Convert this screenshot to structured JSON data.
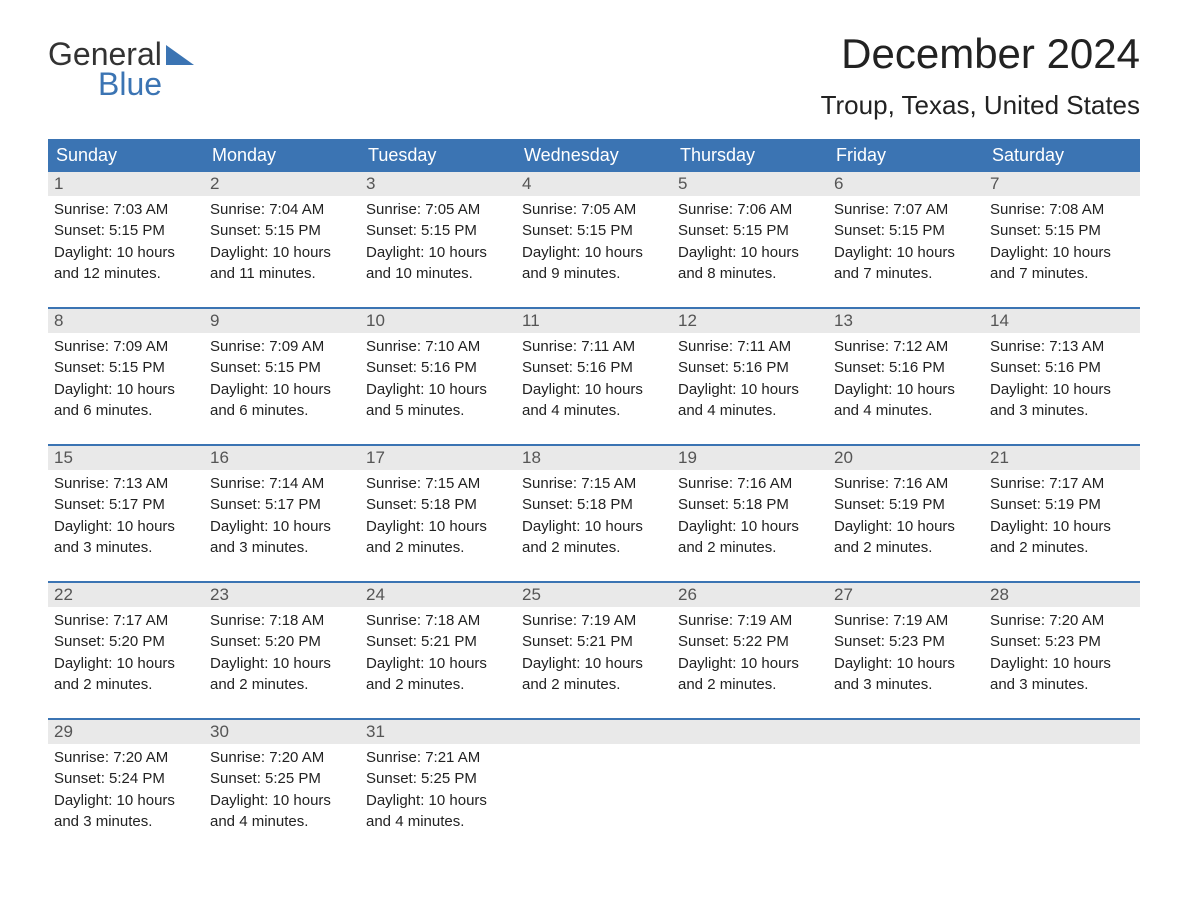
{
  "brand": {
    "word1": "General",
    "word2": "Blue",
    "accent_color": "#3b74b3"
  },
  "title": "December 2024",
  "subtitle": "Troup, Texas, United States",
  "colors": {
    "header_bg": "#3b74b3",
    "header_text": "#ffffff",
    "daynum_bg": "#e9e9e9",
    "daynum_text": "#555555",
    "body_text": "#222222",
    "week_border": "#3b74b3",
    "page_bg": "#ffffff"
  },
  "fonts": {
    "title_size_pt": 32,
    "subtitle_size_pt": 20,
    "header_size_pt": 14,
    "body_size_pt": 11
  },
  "weekdays": [
    "Sunday",
    "Monday",
    "Tuesday",
    "Wednesday",
    "Thursday",
    "Friday",
    "Saturday"
  ],
  "weeks": [
    [
      {
        "n": "1",
        "sunrise": "Sunrise: 7:03 AM",
        "sunset": "Sunset: 5:15 PM",
        "d1": "Daylight: 10 hours",
        "d2": "and 12 minutes."
      },
      {
        "n": "2",
        "sunrise": "Sunrise: 7:04 AM",
        "sunset": "Sunset: 5:15 PM",
        "d1": "Daylight: 10 hours",
        "d2": "and 11 minutes."
      },
      {
        "n": "3",
        "sunrise": "Sunrise: 7:05 AM",
        "sunset": "Sunset: 5:15 PM",
        "d1": "Daylight: 10 hours",
        "d2": "and 10 minutes."
      },
      {
        "n": "4",
        "sunrise": "Sunrise: 7:05 AM",
        "sunset": "Sunset: 5:15 PM",
        "d1": "Daylight: 10 hours",
        "d2": "and 9 minutes."
      },
      {
        "n": "5",
        "sunrise": "Sunrise: 7:06 AM",
        "sunset": "Sunset: 5:15 PM",
        "d1": "Daylight: 10 hours",
        "d2": "and 8 minutes."
      },
      {
        "n": "6",
        "sunrise": "Sunrise: 7:07 AM",
        "sunset": "Sunset: 5:15 PM",
        "d1": "Daylight: 10 hours",
        "d2": "and 7 minutes."
      },
      {
        "n": "7",
        "sunrise": "Sunrise: 7:08 AM",
        "sunset": "Sunset: 5:15 PM",
        "d1": "Daylight: 10 hours",
        "d2": "and 7 minutes."
      }
    ],
    [
      {
        "n": "8",
        "sunrise": "Sunrise: 7:09 AM",
        "sunset": "Sunset: 5:15 PM",
        "d1": "Daylight: 10 hours",
        "d2": "and 6 minutes."
      },
      {
        "n": "9",
        "sunrise": "Sunrise: 7:09 AM",
        "sunset": "Sunset: 5:15 PM",
        "d1": "Daylight: 10 hours",
        "d2": "and 6 minutes."
      },
      {
        "n": "10",
        "sunrise": "Sunrise: 7:10 AM",
        "sunset": "Sunset: 5:16 PM",
        "d1": "Daylight: 10 hours",
        "d2": "and 5 minutes."
      },
      {
        "n": "11",
        "sunrise": "Sunrise: 7:11 AM",
        "sunset": "Sunset: 5:16 PM",
        "d1": "Daylight: 10 hours",
        "d2": "and 4 minutes."
      },
      {
        "n": "12",
        "sunrise": "Sunrise: 7:11 AM",
        "sunset": "Sunset: 5:16 PM",
        "d1": "Daylight: 10 hours",
        "d2": "and 4 minutes."
      },
      {
        "n": "13",
        "sunrise": "Sunrise: 7:12 AM",
        "sunset": "Sunset: 5:16 PM",
        "d1": "Daylight: 10 hours",
        "d2": "and 4 minutes."
      },
      {
        "n": "14",
        "sunrise": "Sunrise: 7:13 AM",
        "sunset": "Sunset: 5:16 PM",
        "d1": "Daylight: 10 hours",
        "d2": "and 3 minutes."
      }
    ],
    [
      {
        "n": "15",
        "sunrise": "Sunrise: 7:13 AM",
        "sunset": "Sunset: 5:17 PM",
        "d1": "Daylight: 10 hours",
        "d2": "and 3 minutes."
      },
      {
        "n": "16",
        "sunrise": "Sunrise: 7:14 AM",
        "sunset": "Sunset: 5:17 PM",
        "d1": "Daylight: 10 hours",
        "d2": "and 3 minutes."
      },
      {
        "n": "17",
        "sunrise": "Sunrise: 7:15 AM",
        "sunset": "Sunset: 5:18 PM",
        "d1": "Daylight: 10 hours",
        "d2": "and 2 minutes."
      },
      {
        "n": "18",
        "sunrise": "Sunrise: 7:15 AM",
        "sunset": "Sunset: 5:18 PM",
        "d1": "Daylight: 10 hours",
        "d2": "and 2 minutes."
      },
      {
        "n": "19",
        "sunrise": "Sunrise: 7:16 AM",
        "sunset": "Sunset: 5:18 PM",
        "d1": "Daylight: 10 hours",
        "d2": "and 2 minutes."
      },
      {
        "n": "20",
        "sunrise": "Sunrise: 7:16 AM",
        "sunset": "Sunset: 5:19 PM",
        "d1": "Daylight: 10 hours",
        "d2": "and 2 minutes."
      },
      {
        "n": "21",
        "sunrise": "Sunrise: 7:17 AM",
        "sunset": "Sunset: 5:19 PM",
        "d1": "Daylight: 10 hours",
        "d2": "and 2 minutes."
      }
    ],
    [
      {
        "n": "22",
        "sunrise": "Sunrise: 7:17 AM",
        "sunset": "Sunset: 5:20 PM",
        "d1": "Daylight: 10 hours",
        "d2": "and 2 minutes."
      },
      {
        "n": "23",
        "sunrise": "Sunrise: 7:18 AM",
        "sunset": "Sunset: 5:20 PM",
        "d1": "Daylight: 10 hours",
        "d2": "and 2 minutes."
      },
      {
        "n": "24",
        "sunrise": "Sunrise: 7:18 AM",
        "sunset": "Sunset: 5:21 PM",
        "d1": "Daylight: 10 hours",
        "d2": "and 2 minutes."
      },
      {
        "n": "25",
        "sunrise": "Sunrise: 7:19 AM",
        "sunset": "Sunset: 5:21 PM",
        "d1": "Daylight: 10 hours",
        "d2": "and 2 minutes."
      },
      {
        "n": "26",
        "sunrise": "Sunrise: 7:19 AM",
        "sunset": "Sunset: 5:22 PM",
        "d1": "Daylight: 10 hours",
        "d2": "and 2 minutes."
      },
      {
        "n": "27",
        "sunrise": "Sunrise: 7:19 AM",
        "sunset": "Sunset: 5:23 PM",
        "d1": "Daylight: 10 hours",
        "d2": "and 3 minutes."
      },
      {
        "n": "28",
        "sunrise": "Sunrise: 7:20 AM",
        "sunset": "Sunset: 5:23 PM",
        "d1": "Daylight: 10 hours",
        "d2": "and 3 minutes."
      }
    ],
    [
      {
        "n": "29",
        "sunrise": "Sunrise: 7:20 AM",
        "sunset": "Sunset: 5:24 PM",
        "d1": "Daylight: 10 hours",
        "d2": "and 3 minutes."
      },
      {
        "n": "30",
        "sunrise": "Sunrise: 7:20 AM",
        "sunset": "Sunset: 5:25 PM",
        "d1": "Daylight: 10 hours",
        "d2": "and 4 minutes."
      },
      {
        "n": "31",
        "sunrise": "Sunrise: 7:21 AM",
        "sunset": "Sunset: 5:25 PM",
        "d1": "Daylight: 10 hours",
        "d2": "and 4 minutes."
      },
      null,
      null,
      null,
      null
    ]
  ]
}
